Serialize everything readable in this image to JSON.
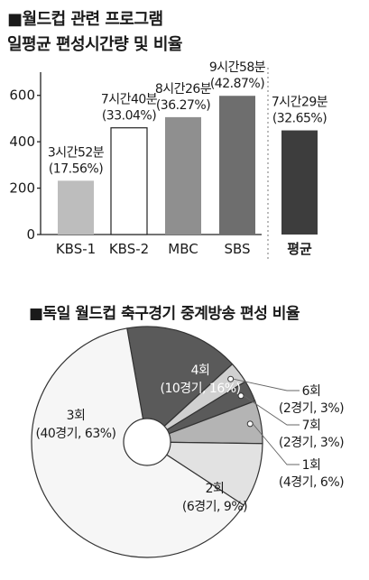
{
  "chart_data": [
    {
      "type": "bar",
      "title": "■월드컵 관련 프로그램",
      "subtitle": "일평균 편성시간량 및 비율",
      "categories": [
        "KBS-1",
        "KBS-2",
        "MBC",
        "SBS",
        "평균"
      ],
      "values": [
        232,
        460,
        506,
        598,
        449
      ],
      "labels": [
        [
          "3시간52분",
          "(17.56%)"
        ],
        [
          "7시간40분",
          "(33.04%)"
        ],
        [
          "8시간26분",
          "(36.27%)"
        ],
        [
          "9시간58분",
          "(42.87%)"
        ],
        [
          "7시간29분",
          "(32.65%)"
        ]
      ],
      "colors": [
        "#bdbdbd",
        "#ffffff",
        "#8f8f8f",
        "#6e6e6e",
        "#3d3d3d"
      ],
      "yticks": [
        0,
        200,
        400,
        600
      ],
      "ylim": [
        0,
        700
      ]
    },
    {
      "type": "pie",
      "title": "■독일 월드컵 축구경기 중계방송 편성 비율",
      "slices": [
        {
          "name": "4회",
          "detail": "(10경기, 16%)",
          "value": 16,
          "color": "#5a5a5a"
        },
        {
          "name": "6회",
          "detail": "(2경기, 3%)",
          "value": 3,
          "color": "#d0d0d0"
        },
        {
          "name": "7회",
          "detail": "(2경기, 3%)",
          "value": 3,
          "color": "#5a5a5a"
        },
        {
          "name": "1회",
          "detail": "(4경기, 6%)",
          "value": 6,
          "color": "#b4b4b4"
        },
        {
          "name": "2회",
          "detail": "(6경기, 9%)",
          "value": 9,
          "color": "#e2e2e2"
        },
        {
          "name": "3회",
          "detail": "(40경기, 63%)",
          "value": 63,
          "color": "#f6f6f6"
        }
      ]
    }
  ]
}
